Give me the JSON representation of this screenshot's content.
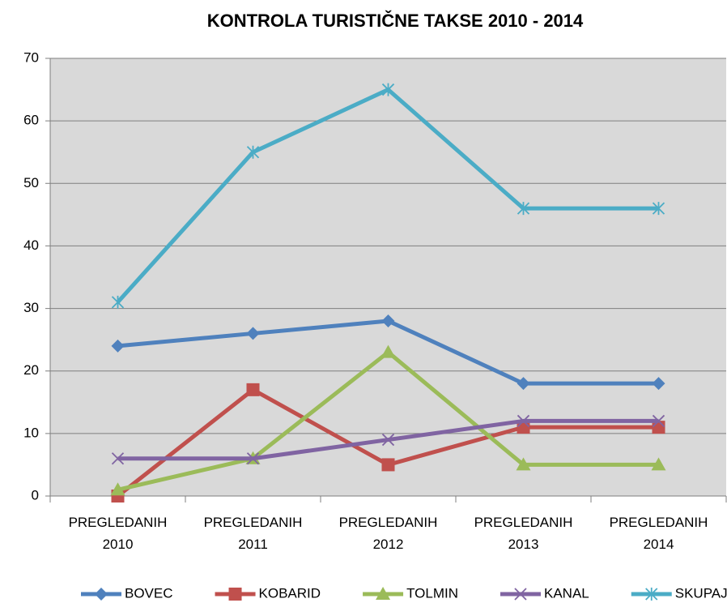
{
  "chart_data": {
    "type": "line",
    "title": "KONTROLA TURISTIČNE TAKSE 2010 - 2014",
    "categories": [
      "PREGLEDANIH 2010",
      "PREGLEDANIH 2011",
      "PREGLEDANIH 2012",
      "PREGLEDANIH 2013",
      "PREGLEDANIH 2014"
    ],
    "series": [
      {
        "name": "BOVEC",
        "color": "#4f81bd",
        "marker": "diamond",
        "values": [
          24,
          26,
          28,
          18,
          18
        ]
      },
      {
        "name": "KOBARID",
        "color": "#c0504d",
        "marker": "square",
        "values": [
          0,
          17,
          5,
          11,
          11
        ]
      },
      {
        "name": "TOLMIN",
        "color": "#9bbb59",
        "marker": "triangle",
        "values": [
          1,
          6,
          23,
          5,
          5
        ]
      },
      {
        "name": "KANAL",
        "color": "#8064a2",
        "marker": "x",
        "values": [
          6,
          6,
          9,
          12,
          12
        ]
      },
      {
        "name": "SKUPAJ",
        "color": "#4bacc6",
        "marker": "star",
        "values": [
          31,
          55,
          65,
          46,
          46
        ]
      }
    ],
    "ylim": [
      0,
      70
    ],
    "yticks": [
      0,
      10,
      20,
      30,
      40,
      50,
      60,
      70
    ],
    "grid": true,
    "legend": "bottom"
  }
}
